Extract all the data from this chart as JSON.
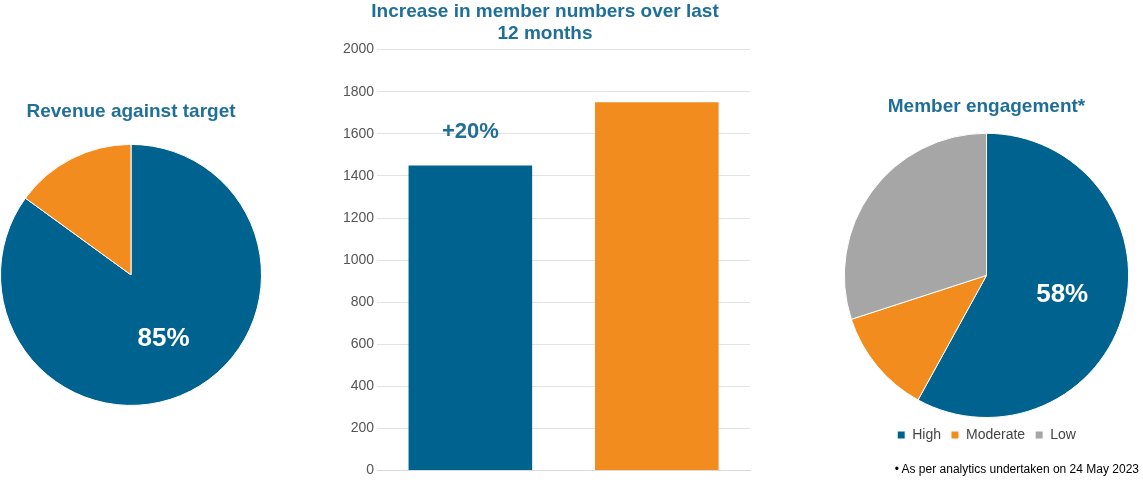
{
  "chart_data": [
    {
      "type": "pie",
      "title": "Revenue against target",
      "categories": [
        null,
        null
      ],
      "values": [
        85,
        15
      ],
      "colors": [
        "#00628f",
        "#f28c1e"
      ],
      "value_labels": [
        "85%",
        null
      ],
      "legend": false
    },
    {
      "type": "bar",
      "title": "Increase in member numbers over last 12 months",
      "categories": [
        null,
        null
      ],
      "values": [
        1450,
        1750
      ],
      "colors": [
        "#00628f",
        "#f28c1e"
      ],
      "ylim": [
        0,
        2000
      ],
      "yticks": [
        0,
        200,
        400,
        600,
        800,
        1000,
        1200,
        1400,
        1600,
        1800,
        2000
      ],
      "grid": "y",
      "tick_labels": "y",
      "annotations": [
        "+20%"
      ],
      "legend": false
    },
    {
      "type": "pie",
      "title": "Member engagement*",
      "categories": [
        "High",
        "Moderate",
        "Low"
      ],
      "values": [
        58,
        12,
        30
      ],
      "colors": [
        "#00628f",
        "#f28c1e",
        "#a6a6a6"
      ],
      "value_labels": [
        "58%",
        null,
        null
      ],
      "legend": "bottom",
      "annotations": [
        "•  As per analytics undertaken on 24 May 2023"
      ]
    }
  ]
}
